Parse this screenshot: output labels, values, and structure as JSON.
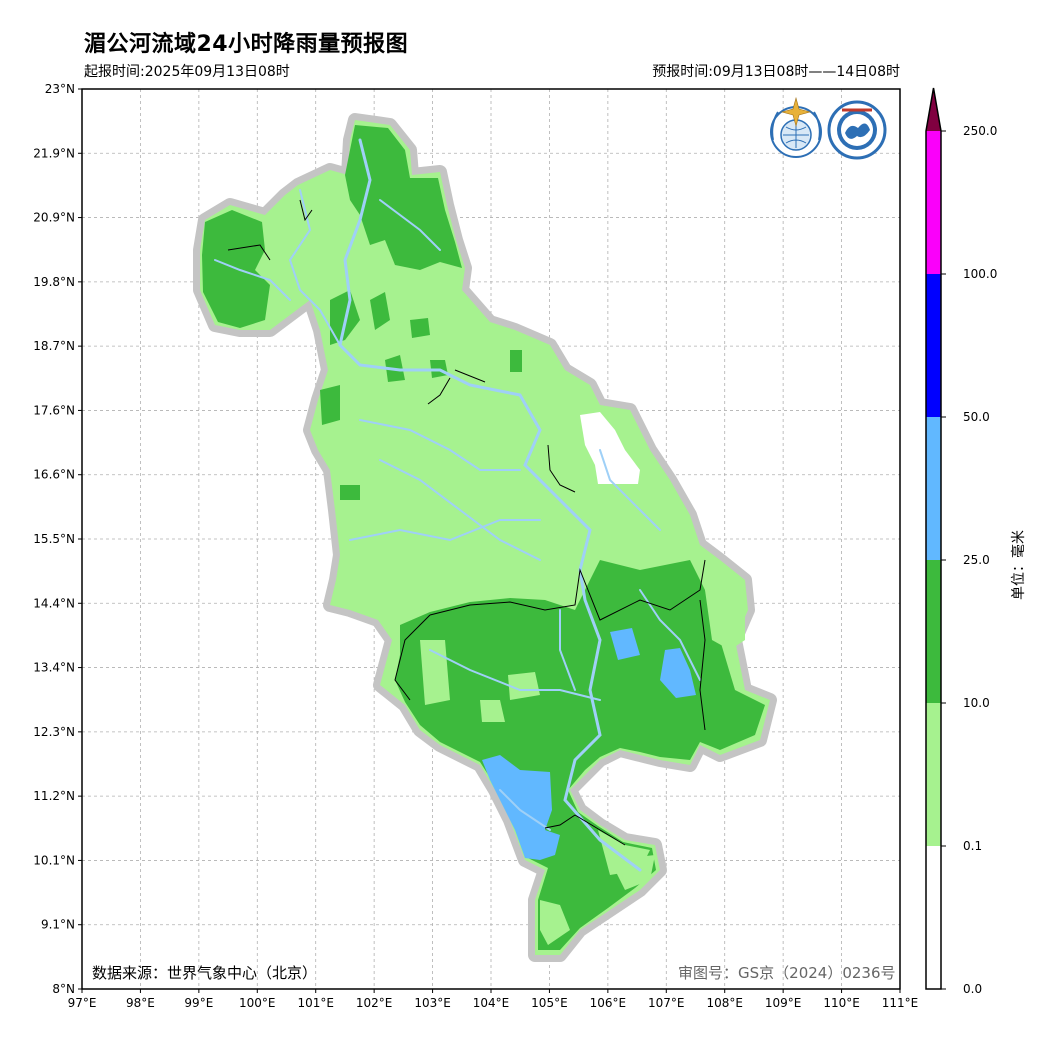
{
  "header": {
    "title": "湄公河流域24小时降雨量预报图",
    "issue_time": "起报时间:2025年09月13日08时",
    "valid_time": "预报时间:09月13日08时——14日08时"
  },
  "axes": {
    "x_ticks": [
      "97°E",
      "98°E",
      "99°E",
      "100°E",
      "101°E",
      "102°E",
      "103°E",
      "104°E",
      "105°E",
      "106°E",
      "107°E",
      "108°E",
      "109°E",
      "110°E",
      "111°E"
    ],
    "y_ticks": [
      "23°N",
      "21.9°N",
      "20.9°N",
      "19.8°N",
      "18.7°N",
      "17.6°N",
      "16.6°N",
      "15.5°N",
      "14.4°N",
      "13.4°N",
      "12.3°N",
      "11.2°N",
      "10.1°N",
      "9.1°N",
      "8°N"
    ]
  },
  "legend": {
    "unit_label": "单位：毫米",
    "levels": [
      "0.0",
      "0.1",
      "10.0",
      "25.0",
      "50.0",
      "100.0",
      "250.0"
    ],
    "colors": [
      "#ffffff",
      "#a6f28f",
      "#3dba3d",
      "#61b8ff",
      "#0000ff",
      "#fa00fa",
      "#800040"
    ]
  },
  "footer": {
    "source": "数据来源：世界气象中心（北京）",
    "review_number": "审图号：GS京（2024）0236号"
  },
  "logos": {
    "wmo_icon": "wmo-emblem-icon",
    "cma_icon": "cma-emblem-icon"
  }
}
